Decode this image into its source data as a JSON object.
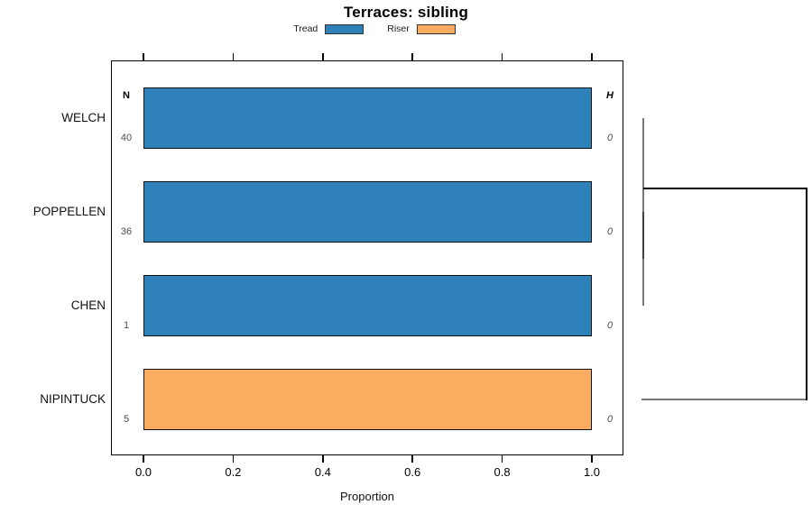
{
  "title": "Terraces: sibling",
  "legend": {
    "items": [
      {
        "label": "Tread",
        "color": "#2E80B9"
      },
      {
        "label": "Riser",
        "color": "#FAAC60"
      }
    ]
  },
  "table": {
    "n_header": "N",
    "h_header": "H"
  },
  "x_axis": {
    "label": "Proportion",
    "tick_labels": [
      "0.0",
      "0.2",
      "0.4",
      "0.6",
      "0.8",
      "1.0"
    ]
  },
  "chart_data": {
    "type": "bar",
    "orientation": "horizontal",
    "title": "Terraces: sibling",
    "xlabel": "Proportion",
    "ylabel": "",
    "xlim": [
      0.0,
      1.0
    ],
    "xticks": [
      0.0,
      0.2,
      0.4,
      0.6,
      0.8,
      1.0
    ],
    "grid": false,
    "legend_position": "top",
    "categories": [
      "WELCH",
      "POPPELLEN",
      "CHEN",
      "NIPINTUCK"
    ],
    "series": [
      {
        "name": "Tread",
        "color": "#2E80B9",
        "values": [
          1.0,
          1.0,
          1.0,
          0.0
        ]
      },
      {
        "name": "Riser",
        "color": "#FAAC60",
        "values": [
          0.0,
          0.0,
          0.0,
          1.0
        ]
      }
    ],
    "rows": [
      {
        "category": "WELCH",
        "N": "40",
        "H": "0",
        "segment": "Tread",
        "proportion": 1.0
      },
      {
        "category": "POPPELLEN",
        "N": "36",
        "H": "0",
        "segment": "Tread",
        "proportion": 1.0
      },
      {
        "category": "CHEN",
        "N": "1",
        "H": "0",
        "segment": "Tread",
        "proportion": 1.0
      },
      {
        "category": "NIPINTUCK",
        "N": "5",
        "H": "0",
        "segment": "Riser",
        "proportion": 1.0
      }
    ],
    "dendrogram": {
      "side": "right",
      "leaf_order": [
        "WELCH",
        "POPPELLEN",
        "CHEN",
        "NIPINTUCK"
      ],
      "merges": [
        {
          "children": [
            "POPPELLEN",
            "CHEN"
          ],
          "relative_height": 0.0
        },
        {
          "children": [
            "WELCH",
            "POPPELLEN+CHEN"
          ],
          "relative_height": 0.0
        },
        {
          "children": [
            "WELCH+POPPELLEN+CHEN",
            "NIPINTUCK"
          ],
          "relative_height": 1.0
        }
      ],
      "line_color_minor": "#787878",
      "line_color_overlap": "#3f3f3f",
      "line_color_major": "#000000"
    }
  }
}
